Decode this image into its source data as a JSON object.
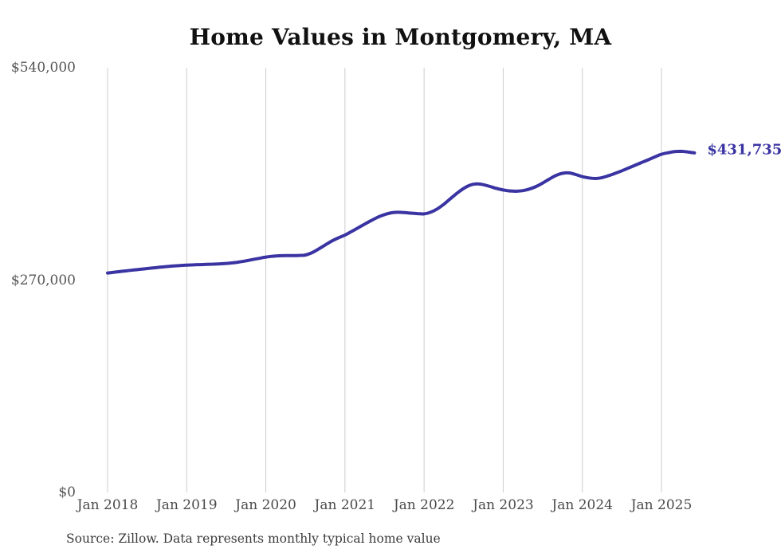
{
  "page": {
    "title": "Home Values in Montgomery, MA"
  },
  "footer": {
    "source": "Source: Zillow. Data represents monthly typical home value"
  },
  "chart_data": {
    "type": "line",
    "title": "Home Values in Montgomery, MA",
    "x_start": "2018-01",
    "x_end": "2025-06",
    "x_tick_labels": [
      "Jan 2018",
      "Jan 2019",
      "Jan 2020",
      "Jan 2021",
      "Jan 2022",
      "Jan 2023",
      "Jan 2024",
      "Jan 2025"
    ],
    "x_tick_month_indices": [
      0,
      12,
      24,
      36,
      48,
      60,
      72,
      84
    ],
    "y_ticks": [
      {
        "label": "$540,000",
        "value": 540000
      },
      {
        "label": "$270,000",
        "value": 270000
      },
      {
        "label": "$0",
        "value": 0
      }
    ],
    "ylim": [
      0,
      540000
    ],
    "grid": "vertical-only",
    "legend": "none",
    "end_label": "$431,735",
    "end_value": 431735,
    "series": [
      {
        "name": "Monthly typical home value",
        "color": "#3a34a3",
        "values": [
          279000,
          280000,
          281000,
          282000,
          282900,
          283800,
          284700,
          285600,
          286400,
          287200,
          287900,
          288500,
          289000,
          289400,
          289700,
          290000,
          290300,
          290700,
          291200,
          292000,
          293100,
          294500,
          296100,
          297700,
          299300,
          300300,
          300900,
          301100,
          301100,
          301300,
          301900,
          304900,
          309500,
          314600,
          319600,
          323700,
          327200,
          331800,
          336500,
          341200,
          345800,
          350000,
          353300,
          355500,
          356200,
          355900,
          355100,
          354500,
          354200,
          356300,
          360500,
          366500,
          373500,
          380500,
          386500,
          390800,
          392300,
          391300,
          389000,
          386500,
          384600,
          383400,
          383000,
          383800,
          385800,
          389000,
          393500,
          398500,
          403000,
          405800,
          406300,
          404200,
          401500,
          399900,
          399200,
          400300,
          402800,
          405800,
          409000,
          412500,
          416000,
          419500,
          423000,
          426600,
          430000,
          431900,
          433300,
          433700,
          432900,
          431735
        ]
      }
    ],
    "colors": {
      "line": "#3a34a3",
      "grid": "#cccccc",
      "axis_text": "#555555",
      "title_text": "#111111",
      "source_text": "#3a3a3a",
      "end_label_text": "#3a34a3"
    }
  }
}
